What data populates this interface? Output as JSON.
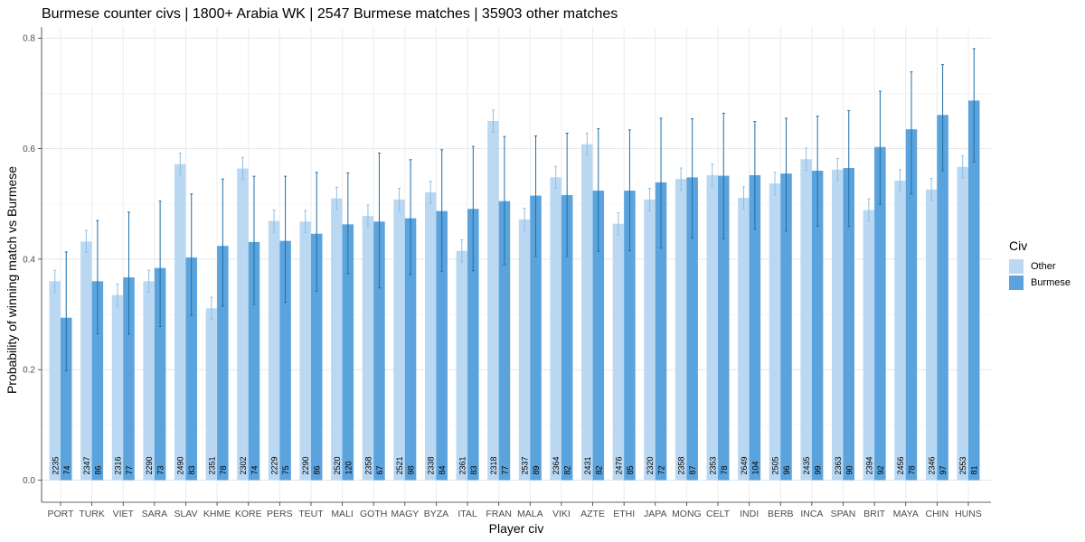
{
  "chart_data": {
    "type": "bar",
    "title": "Burmese  counter civs | 1800+ Arabia WK |  2547   Burmese  matches |  35903  other matches",
    "xlabel": "Player civ",
    "ylabel": "Probability of winning match vs Burmese",
    "ylim": [
      -0.04,
      0.82
    ],
    "yticks": [
      0.0,
      0.2,
      0.4,
      0.6,
      0.8
    ],
    "ytick_labels": [
      "0.0",
      "0.2",
      "0.4",
      "0.6",
      "0.8"
    ],
    "grid": true,
    "legend_title": "Civ",
    "legend_position": "right",
    "colors": {
      "Other": "#bad8f2",
      "Burmese": "#5ba3dd",
      "other_error": "#8cc0e8",
      "burmese_error": "#1f6fa8"
    },
    "categories": [
      "PORT",
      "TURK",
      "VIET",
      "SARA",
      "SLAV",
      "KHME",
      "KORE",
      "PERS",
      "TEUT",
      "MALI",
      "GOTH",
      "MAGY",
      "BYZA",
      "ITAL",
      "FRAN",
      "MALA",
      "VIKI",
      "AZTE",
      "ETHI",
      "JAPA",
      "MONG",
      "CELT",
      "INDI",
      "BERB",
      "INCA",
      "SPAN",
      "BRIT",
      "MAYA",
      "CHIN",
      "HUNS"
    ],
    "series": [
      {
        "name": "Other",
        "values": [
          0.36,
          0.432,
          0.335,
          0.36,
          0.572,
          0.311,
          0.564,
          0.469,
          0.468,
          0.51,
          0.478,
          0.508,
          0.521,
          0.415,
          0.65,
          0.472,
          0.548,
          0.608,
          0.464,
          0.508,
          0.545,
          0.552,
          0.511,
          0.537,
          0.581,
          0.562,
          0.489,
          0.542,
          0.526,
          0.567
        ],
        "err_low": [
          0.34,
          0.412,
          0.315,
          0.34,
          0.552,
          0.291,
          0.544,
          0.449,
          0.448,
          0.49,
          0.458,
          0.488,
          0.501,
          0.395,
          0.63,
          0.452,
          0.528,
          0.588,
          0.444,
          0.488,
          0.525,
          0.532,
          0.491,
          0.517,
          0.561,
          0.542,
          0.469,
          0.522,
          0.506,
          0.547
        ],
        "err_high": [
          0.38,
          0.452,
          0.355,
          0.38,
          0.592,
          0.331,
          0.584,
          0.489,
          0.488,
          0.53,
          0.498,
          0.528,
          0.541,
          0.435,
          0.67,
          0.492,
          0.568,
          0.628,
          0.484,
          0.528,
          0.565,
          0.572,
          0.531,
          0.557,
          0.601,
          0.582,
          0.509,
          0.562,
          0.546,
          0.587
        ],
        "counts": [
          "2235",
          "2347",
          "2316",
          "2290",
          "2490",
          "2351",
          "2302",
          "2229",
          "2290",
          "2520",
          "2358",
          "2521",
          "2338",
          "2361",
          "2318",
          "2537",
          "2364",
          "2431",
          "2476",
          "2320",
          "2358",
          "2353",
          "2649",
          "2505",
          "2435",
          "2363",
          "2394",
          "2456",
          "2346",
          "2553"
        ]
      },
      {
        "name": "Burmese",
        "values": [
          0.294,
          0.36,
          0.367,
          0.384,
          0.403,
          0.424,
          0.431,
          0.433,
          0.446,
          0.463,
          0.468,
          0.474,
          0.487,
          0.491,
          0.505,
          0.515,
          0.516,
          0.524,
          0.524,
          0.539,
          0.548,
          0.551,
          0.552,
          0.555,
          0.56,
          0.565,
          0.603,
          0.635,
          0.661,
          0.687
        ],
        "err_low": [
          0.198,
          0.265,
          0.264,
          0.278,
          0.298,
          0.315,
          0.318,
          0.322,
          0.342,
          0.374,
          0.348,
          0.372,
          0.378,
          0.379,
          0.39,
          0.405,
          0.405,
          0.414,
          0.415,
          0.42,
          0.438,
          0.437,
          0.454,
          0.451,
          0.46,
          0.459,
          0.499,
          0.518,
          0.56,
          0.576
        ],
        "err_high": [
          0.413,
          0.47,
          0.485,
          0.505,
          0.518,
          0.545,
          0.55,
          0.55,
          0.557,
          0.556,
          0.592,
          0.58,
          0.598,
          0.604,
          0.622,
          0.623,
          0.628,
          0.636,
          0.634,
          0.655,
          0.654,
          0.664,
          0.649,
          0.655,
          0.659,
          0.669,
          0.704,
          0.739,
          0.752,
          0.781
        ],
        "counts": [
          "74",
          "86",
          "77",
          "73",
          "83",
          "78",
          "74",
          "75",
          "86",
          "120",
          "67",
          "98",
          "84",
          "83",
          "77",
          "89",
          "82",
          "82",
          "85",
          "72",
          "87",
          "78",
          "104",
          "96",
          "99",
          "90",
          "92",
          "78",
          "97",
          "81"
        ]
      }
    ]
  }
}
